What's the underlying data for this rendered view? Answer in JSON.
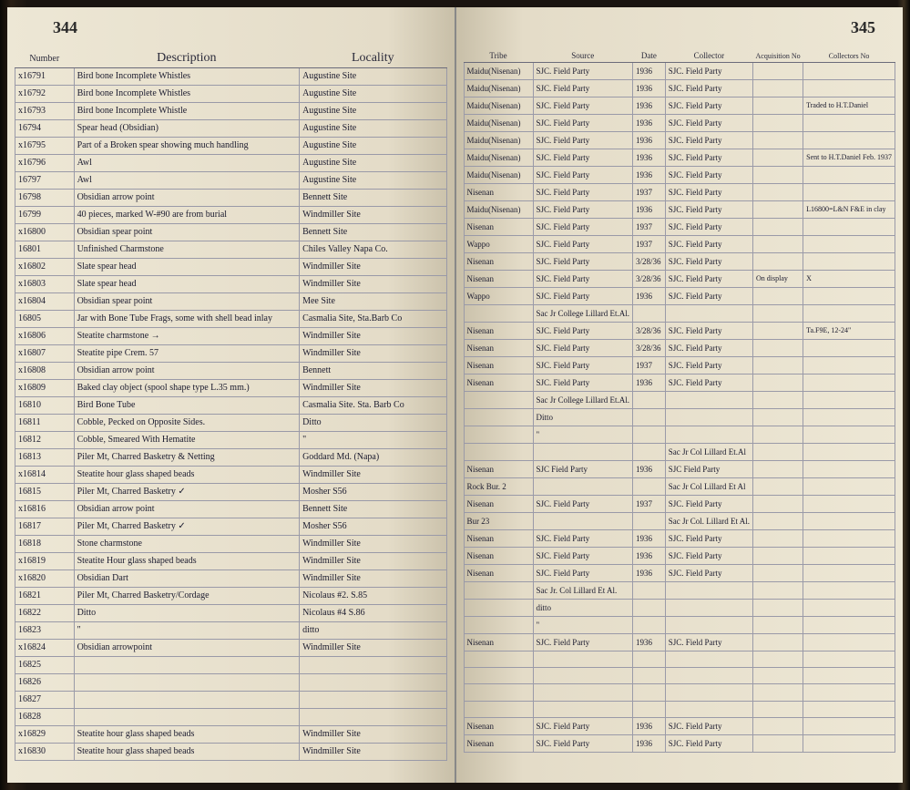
{
  "pageLeftNum": "344",
  "pageRightNum": "345",
  "headersLeft": [
    "Number",
    "Description",
    "Locality"
  ],
  "headersRight": [
    "Tribe",
    "Source",
    "Date",
    "Collector",
    "Acquisition No",
    "Collectors No"
  ],
  "rows": [
    {
      "num": "x16791",
      "desc": "Bird bone Incomplete Whistles",
      "loc": "Augustine Site",
      "tribe": "Maidu(Nisenan)",
      "source": "SJC. Field Party",
      "date": "1936",
      "coll": "SJC. Field Party",
      "acq": "",
      "collno": ""
    },
    {
      "num": "x16792",
      "desc": "Bird bone Incomplete Whistles",
      "loc": "Augustine Site",
      "tribe": "Maidu(Nisenan)",
      "source": "SJC. Field Party",
      "date": "1936",
      "coll": "SJC. Field Party",
      "acq": "",
      "collno": ""
    },
    {
      "num": "x16793",
      "desc": "Bird bone Incomplete Whistle",
      "loc": "Augustine Site",
      "tribe": "Maidu(Nisenan)",
      "source": "SJC. Field Party",
      "date": "1936",
      "coll": "SJC. Field Party",
      "acq": "",
      "collno": "Traded to H.T.Daniel"
    },
    {
      "num": "16794",
      "desc": "Spear head (Obsidian)",
      "loc": "Augustine Site",
      "tribe": "Maidu(Nisenan)",
      "source": "SJC. Field Party",
      "date": "1936",
      "coll": "SJC. Field Party",
      "acq": "",
      "collno": ""
    },
    {
      "num": "x16795",
      "desc": "Part of a Broken spear showing much handling",
      "loc": "Augustine Site",
      "tribe": "Maidu(Nisenan)",
      "source": "SJC. Field Party",
      "date": "1936",
      "coll": "SJC. Field Party",
      "acq": "",
      "collno": ""
    },
    {
      "num": "x16796",
      "desc": "Awl",
      "loc": "Augustine Site",
      "tribe": "Maidu(Nisenan)",
      "source": "SJC. Field Party",
      "date": "1936",
      "coll": "SJC. Field Party",
      "acq": "",
      "collno": "Sent to H.T.Daniel Feb. 1937"
    },
    {
      "num": "16797",
      "desc": "Awl",
      "loc": "Augustine Site",
      "tribe": "Maidu(Nisenan)",
      "source": "SJC. Field Party",
      "date": "1936",
      "coll": "SJC. Field Party",
      "acq": "",
      "collno": ""
    },
    {
      "num": "16798",
      "desc": "Obsidian arrow point",
      "loc": "Bennett Site",
      "tribe": "Nisenan",
      "source": "SJC. Field Party",
      "date": "1937",
      "coll": "SJC. Field Party",
      "acq": "",
      "collno": ""
    },
    {
      "num": "16799",
      "desc": "40 pieces, marked W-#90 are from burial",
      "loc": "Windmiller Site",
      "tribe": "Maidu(Nisenan)",
      "source": "SJC. Field Party",
      "date": "1936",
      "coll": "SJC. Field Party",
      "acq": "",
      "collno": "L16800=L&N F&E in clay"
    },
    {
      "num": "x16800",
      "desc": "Obsidian spear point",
      "loc": "Bennett Site",
      "tribe": "Nisenan",
      "source": "SJC. Field Party",
      "date": "1937",
      "coll": "SJC. Field Party",
      "acq": "",
      "collno": ""
    },
    {
      "num": "16801",
      "desc": "Unfinished Charmstone",
      "loc": "Chiles Valley Napa Co.",
      "tribe": "Wappo",
      "source": "SJC. Field Party",
      "date": "1937",
      "coll": "SJC. Field Party",
      "acq": "",
      "collno": ""
    },
    {
      "num": "x16802",
      "desc": "Slate spear head",
      "loc": "Windmiller Site",
      "tribe": "Nisenan",
      "source": "SJC. Field Party",
      "date": "3/28/36",
      "coll": "SJC. Field Party",
      "acq": "",
      "collno": ""
    },
    {
      "num": "x16803",
      "desc": "Slate spear head",
      "loc": "Windmiller Site",
      "tribe": "Nisenan",
      "source": "SJC. Field Party",
      "date": "3/28/36",
      "coll": "SJC. Field Party",
      "acq": "On display",
      "collno": "X"
    },
    {
      "num": "x16804",
      "desc": "Obsidian spear point",
      "loc": "Mee Site",
      "tribe": "Wappo",
      "source": "SJC. Field Party",
      "date": "1936",
      "coll": "SJC. Field Party",
      "acq": "",
      "collno": ""
    },
    {
      "num": "16805",
      "desc": "Jar with Bone Tube Frags, some with shell bead inlay",
      "loc": "Casmalia Site, Sta.Barb Co",
      "tribe": "",
      "source": "Sac Jr College Lillard Et.Al.",
      "date": "",
      "coll": "",
      "acq": "",
      "collno": ""
    },
    {
      "num": "x16806",
      "desc": "Steatite charmstone →",
      "loc": "Windmiller Site",
      "tribe": "Nisenan",
      "source": "SJC. Field Party",
      "date": "3/28/36",
      "coll": "SJC. Field Party",
      "acq": "",
      "collno": "Ta.F9E, 12-24\""
    },
    {
      "num": "x16807",
      "desc": "Steatite pipe  Crem. 57",
      "loc": "Windmiller Site",
      "tribe": "Nisenan",
      "source": "SJC. Field Party",
      "date": "3/28/36",
      "coll": "SJC. Field Party",
      "acq": "",
      "collno": ""
    },
    {
      "num": "x16808",
      "desc": "Obsidian arrow point",
      "loc": "Bennett",
      "tribe": "Nisenan",
      "source": "SJC. Field Party",
      "date": "1937",
      "coll": "SJC. Field Party",
      "acq": "",
      "collno": ""
    },
    {
      "num": "x16809",
      "desc": "Baked clay object (spool shape type L.35 mm.)",
      "loc": "Windmiller Site",
      "tribe": "Nisenan",
      "source": "SJC. Field Party",
      "date": "1936",
      "coll": "SJC. Field Party",
      "acq": "",
      "collno": ""
    },
    {
      "num": "16810",
      "desc": "Bird Bone Tube",
      "loc": "Casmalia Site. Sta. Barb Co",
      "tribe": "",
      "source": "Sac Jr College Lillard Et.Al.",
      "date": "",
      "coll": "",
      "acq": "",
      "collno": ""
    },
    {
      "num": "16811",
      "desc": "Cobble, Pecked on Opposite Sides.",
      "loc": "Ditto",
      "tribe": "",
      "source": "Ditto",
      "date": "",
      "coll": "",
      "acq": "",
      "collno": ""
    },
    {
      "num": "16812",
      "desc": "Cobble, Smeared With Hematite",
      "loc": "\"",
      "tribe": "",
      "source": "\"",
      "date": "",
      "coll": "",
      "acq": "",
      "collno": ""
    },
    {
      "num": "16813",
      "desc": "Piler Mt, Charred Basketry & Netting",
      "loc": "Goddard Md. (Napa)",
      "tribe": "",
      "source": "",
      "date": "",
      "coll": "Sac Jr Col Lillard Et.Al",
      "acq": "",
      "collno": ""
    },
    {
      "num": "x16814",
      "desc": "Steatite hour glass shaped beads",
      "loc": "Windmiller Site",
      "tribe": "Nisenan",
      "source": "SJC Field Party",
      "date": "1936",
      "coll": "SJC Field Party",
      "acq": "",
      "collno": ""
    },
    {
      "num": "16815",
      "desc": "Piler Mt, Charred Basketry  ✓",
      "loc": "Mosher S56",
      "tribe": "Rock Bur. 2",
      "source": "",
      "date": "",
      "coll": "Sac Jr Col Lillard Et Al",
      "acq": "",
      "collno": ""
    },
    {
      "num": "x16816",
      "desc": "Obsidian arrow point",
      "loc": "Bennett Site",
      "tribe": "Nisenan",
      "source": "SJC. Field Party",
      "date": "1937",
      "coll": "SJC. Field Party",
      "acq": "",
      "collno": ""
    },
    {
      "num": "16817",
      "desc": "Piler Mt, Charred Basketry  ✓",
      "loc": "Mosher S56",
      "tribe": "Bur 23",
      "source": "",
      "date": "",
      "coll": "Sac Jr Col. Lillard Et Al.",
      "acq": "",
      "collno": ""
    },
    {
      "num": "16818",
      "desc": "Stone charmstone",
      "loc": "Windmiller Site",
      "tribe": "Nisenan",
      "source": "SJC. Field Party",
      "date": "1936",
      "coll": "SJC. Field Party",
      "acq": "",
      "collno": ""
    },
    {
      "num": "x16819",
      "desc": "Steatite Hour glass shaped beads",
      "loc": "Windmiller Site",
      "tribe": "Nisenan",
      "source": "SJC. Field Party",
      "date": "1936",
      "coll": "SJC. Field Party",
      "acq": "",
      "collno": ""
    },
    {
      "num": "x16820",
      "desc": "Obsidian Dart",
      "loc": "Windmiller Site",
      "tribe": "Nisenan",
      "source": "SJC. Field Party",
      "date": "1936",
      "coll": "SJC. Field Party",
      "acq": "",
      "collno": ""
    },
    {
      "num": "16821",
      "desc": "Piler Mt, Charred Basketry/Cordage",
      "loc": "Nicolaus #2. S.85",
      "tribe": "",
      "source": "Sac Jr. Col Lillard Et Al.",
      "date": "",
      "coll": "",
      "acq": "",
      "collno": ""
    },
    {
      "num": "16822",
      "desc": "Ditto",
      "loc": "Nicolaus #4  S.86",
      "tribe": "",
      "source": "ditto",
      "date": "",
      "coll": "",
      "acq": "",
      "collno": ""
    },
    {
      "num": "16823",
      "desc": "\"",
      "loc": "ditto",
      "tribe": "",
      "source": "\"",
      "date": "",
      "coll": "",
      "acq": "",
      "collno": ""
    },
    {
      "num": "x16824",
      "desc": "Obsidian arrowpoint",
      "loc": "Windmiller Site",
      "tribe": "Nisenan",
      "source": "SJC. Field Party",
      "date": "1936",
      "coll": "SJC. Field Party",
      "acq": "",
      "collno": ""
    },
    {
      "num": "16825",
      "desc": "",
      "loc": "",
      "tribe": "",
      "source": "",
      "date": "",
      "coll": "",
      "acq": "",
      "collno": ""
    },
    {
      "num": "16826",
      "desc": "",
      "loc": "",
      "tribe": "",
      "source": "",
      "date": "",
      "coll": "",
      "acq": "",
      "collno": ""
    },
    {
      "num": "16827",
      "desc": "",
      "loc": "",
      "tribe": "",
      "source": "",
      "date": "",
      "coll": "",
      "acq": "",
      "collno": ""
    },
    {
      "num": "16828",
      "desc": "",
      "loc": "",
      "tribe": "",
      "source": "",
      "date": "",
      "coll": "",
      "acq": "",
      "collno": ""
    },
    {
      "num": "x16829",
      "desc": "Steatite hour glass shaped beads",
      "loc": "Windmiller Site",
      "tribe": "Nisenan",
      "source": "SJC. Field Party",
      "date": "1936",
      "coll": "SJC. Field Party",
      "acq": "",
      "collno": ""
    },
    {
      "num": "x16830",
      "desc": "Steatite hour glass shaped beads",
      "loc": "Windmiller Site",
      "tribe": "Nisenan",
      "source": "SJC. Field Party",
      "date": "1936",
      "coll": "SJC. Field Party",
      "acq": "",
      "collno": ""
    }
  ]
}
